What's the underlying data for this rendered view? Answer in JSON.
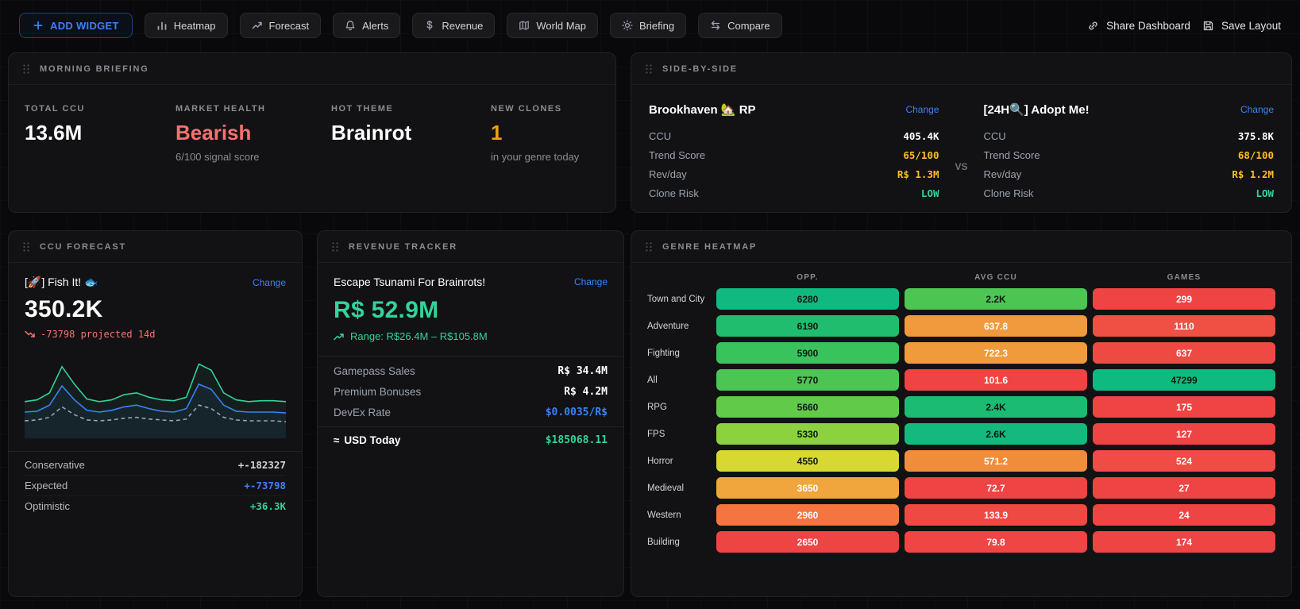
{
  "toolbar": {
    "add_widget": {
      "label": "ADD WIDGET",
      "icon": "plus-icon"
    },
    "buttons": [
      {
        "label": "Heatmap",
        "icon": "bar-chart-icon"
      },
      {
        "label": "Forecast",
        "icon": "trending-up-icon"
      },
      {
        "label": "Alerts",
        "icon": "bell-icon"
      },
      {
        "label": "Revenue",
        "icon": "dollar-icon"
      },
      {
        "label": "World Map",
        "icon": "map-icon"
      },
      {
        "label": "Briefing",
        "icon": "sun-icon"
      },
      {
        "label": "Compare",
        "icon": "compare-arrows-icon"
      }
    ],
    "share": {
      "label": "Share Dashboard",
      "icon": "link-icon"
    },
    "save": {
      "label": "Save Layout",
      "icon": "save-icon"
    }
  },
  "colors": {
    "accent_blue": "#3b82f6",
    "bearish_red": "#f87171",
    "amber": "#f59e0b",
    "green": "#34d399",
    "yellow": "#fbbf24"
  },
  "briefing": {
    "title": "MORNING BRIEFING",
    "stats": [
      {
        "label": "TOTAL CCU",
        "value": "13.6M",
        "sub": "",
        "color": "#ffffff"
      },
      {
        "label": "MARKET HEALTH",
        "value": "Bearish",
        "sub": "6/100 signal score",
        "color": "#f87171"
      },
      {
        "label": "HOT THEME",
        "value": "Brainrot",
        "sub": "",
        "color": "#ffffff"
      },
      {
        "label": "NEW CLONES",
        "value": "1",
        "sub": "in your genre today",
        "color": "#f59e0b"
      }
    ]
  },
  "side_by_side": {
    "title": "SIDE-BY-SIDE",
    "vs_label": "VS",
    "left": {
      "name": "Brookhaven 🏡 RP",
      "change_label": "Change",
      "rows": [
        {
          "label": "CCU",
          "value": "405.4K",
          "color": "#ffffff"
        },
        {
          "label": "Trend Score",
          "value": "65/100",
          "color": "#fbbf24"
        },
        {
          "label": "Rev/day",
          "value": "R$ 1.3M",
          "color": "#fbbf24"
        },
        {
          "label": "Clone Risk",
          "value": "LOW",
          "color": "#34d399"
        }
      ]
    },
    "right": {
      "name": "[24H🔍] Adopt Me!",
      "change_label": "Change",
      "rows": [
        {
          "label": "CCU",
          "value": "375.8K",
          "color": "#ffffff"
        },
        {
          "label": "Trend Score",
          "value": "68/100",
          "color": "#fbbf24"
        },
        {
          "label": "Rev/day",
          "value": "R$ 1.2M",
          "color": "#fbbf24"
        },
        {
          "label": "Clone Risk",
          "value": "LOW",
          "color": "#34d399"
        }
      ]
    }
  },
  "forecast": {
    "title": "CCU FORECAST",
    "game_name": "[🚀] Fish It! 🐟",
    "change_label": "Change",
    "current_ccu": "350.2K",
    "projection_icon": "trending-down-icon",
    "projection": "-73798 projected 14d",
    "chart": {
      "type": "line",
      "series": [
        {
          "name": "optimistic",
          "color": "#34d399",
          "dash": "",
          "fill": true,
          "values": [
            0.42,
            0.44,
            0.52,
            0.82,
            0.62,
            0.45,
            0.42,
            0.44,
            0.5,
            0.52,
            0.47,
            0.44,
            0.43,
            0.47,
            0.85,
            0.78,
            0.52,
            0.44,
            0.42,
            0.43,
            0.43,
            0.42
          ]
        },
        {
          "name": "expected",
          "color": "#3b82f6",
          "dash": "",
          "fill": true,
          "values": [
            0.3,
            0.31,
            0.38,
            0.6,
            0.44,
            0.32,
            0.3,
            0.32,
            0.36,
            0.38,
            0.34,
            0.31,
            0.3,
            0.34,
            0.62,
            0.56,
            0.38,
            0.31,
            0.3,
            0.3,
            0.3,
            0.29
          ]
        },
        {
          "name": "conservative",
          "color": "#9ca3af",
          "dash": "5 4",
          "fill": false,
          "values": [
            0.2,
            0.21,
            0.24,
            0.36,
            0.27,
            0.21,
            0.2,
            0.21,
            0.23,
            0.24,
            0.22,
            0.21,
            0.2,
            0.22,
            0.38,
            0.34,
            0.24,
            0.21,
            0.2,
            0.2,
            0.2,
            0.19
          ]
        }
      ]
    },
    "scenarios": [
      {
        "label": "Conservative",
        "value": "+-182327",
        "color": "#d4d4d8"
      },
      {
        "label": "Expected",
        "value": "+-73798",
        "color": "#3b82f6"
      },
      {
        "label": "Optimistic",
        "value": "+36.3K",
        "color": "#34d399"
      }
    ]
  },
  "revenue": {
    "title": "REVENUE TRACKER",
    "game_name": "Escape Tsunami For Brainrots!",
    "change_label": "Change",
    "total": "R$ 52.9M",
    "range_icon": "trending-up-icon",
    "range": "Range: R$26.4M – R$105.8M",
    "rows": [
      {
        "label": "Gamepass Sales",
        "value": "R$ 34.4M",
        "color": "#ffffff"
      },
      {
        "label": "Premium Bonuses",
        "value": "R$ 4.2M",
        "color": "#ffffff"
      },
      {
        "label": "DevEx Rate",
        "value": "$0.0035/R$",
        "color": "#3b82f6"
      }
    ],
    "usd_icon": "≈",
    "usd_label": "USD Today",
    "usd_value": "$185068.11",
    "usd_color": "#34d399"
  },
  "heatmap": {
    "title": "GENRE HEATMAP",
    "columns": [
      "OPP.",
      "AVG CCU",
      "GAMES"
    ],
    "rows": [
      {
        "label": "Town and City",
        "cells": [
          {
            "value": "6280",
            "bg": "#10b97f",
            "fg": "#0b1a12"
          },
          {
            "value": "2.2K",
            "bg": "#4cc553",
            "fg": "#0b1a12"
          },
          {
            "value": "299",
            "bg": "#ef4444",
            "fg": "#ffffff"
          }
        ]
      },
      {
        "label": "Adventure",
        "cells": [
          {
            "value": "6190",
            "bg": "#21bd6e",
            "fg": "#0b1a12"
          },
          {
            "value": "637.8",
            "bg": "#f0993d",
            "fg": "#ffffff"
          },
          {
            "value": "1110",
            "bg": "#f05044",
            "fg": "#ffffff"
          }
        ]
      },
      {
        "label": "Fighting",
        "cells": [
          {
            "value": "5900",
            "bg": "#39c35d",
            "fg": "#0b1a12"
          },
          {
            "value": "722.3",
            "bg": "#ef9b3c",
            "fg": "#ffffff"
          },
          {
            "value": "637",
            "bg": "#ef4944",
            "fg": "#ffffff"
          }
        ]
      },
      {
        "label": "All",
        "cells": [
          {
            "value": "5770",
            "bg": "#4cc553",
            "fg": "#0b1a12"
          },
          {
            "value": "101.6",
            "bg": "#ef4444",
            "fg": "#ffffff"
          },
          {
            "value": "47299",
            "bg": "#10b97f",
            "fg": "#0b1a12"
          }
        ]
      },
      {
        "label": "RPG",
        "cells": [
          {
            "value": "5660",
            "bg": "#61ca49",
            "fg": "#0b1a12"
          },
          {
            "value": "2.4K",
            "bg": "#1cbb74",
            "fg": "#0b1a12"
          },
          {
            "value": "175",
            "bg": "#ef4444",
            "fg": "#ffffff"
          }
        ]
      },
      {
        "label": "FPS",
        "cells": [
          {
            "value": "5330",
            "bg": "#8bd23e",
            "fg": "#0b1a12"
          },
          {
            "value": "2.6K",
            "bg": "#13b97d",
            "fg": "#0b1a12"
          },
          {
            "value": "127",
            "bg": "#ef4444",
            "fg": "#ffffff"
          }
        ]
      },
      {
        "label": "Horror",
        "cells": [
          {
            "value": "4550",
            "bg": "#d7d832",
            "fg": "#0b1a12"
          },
          {
            "value": "571.2",
            "bg": "#f08d3c",
            "fg": "#ffffff"
          },
          {
            "value": "524",
            "bg": "#f04b44",
            "fg": "#ffffff"
          }
        ]
      },
      {
        "label": "Medieval",
        "cells": [
          {
            "value": "3650",
            "bg": "#f0a63c",
            "fg": "#ffffff"
          },
          {
            "value": "72.7",
            "bg": "#ef4444",
            "fg": "#ffffff"
          },
          {
            "value": "27",
            "bg": "#ef4444",
            "fg": "#ffffff"
          }
        ]
      },
      {
        "label": "Western",
        "cells": [
          {
            "value": "2960",
            "bg": "#f47540",
            "fg": "#ffffff"
          },
          {
            "value": "133.9",
            "bg": "#ef4944",
            "fg": "#ffffff"
          },
          {
            "value": "24",
            "bg": "#ef4444",
            "fg": "#ffffff"
          }
        ]
      },
      {
        "label": "Building",
        "cells": [
          {
            "value": "2650",
            "bg": "#ef4444",
            "fg": "#ffffff"
          },
          {
            "value": "79.8",
            "bg": "#ef4544",
            "fg": "#ffffff"
          },
          {
            "value": "174",
            "bg": "#ef4444",
            "fg": "#ffffff"
          }
        ]
      }
    ]
  }
}
